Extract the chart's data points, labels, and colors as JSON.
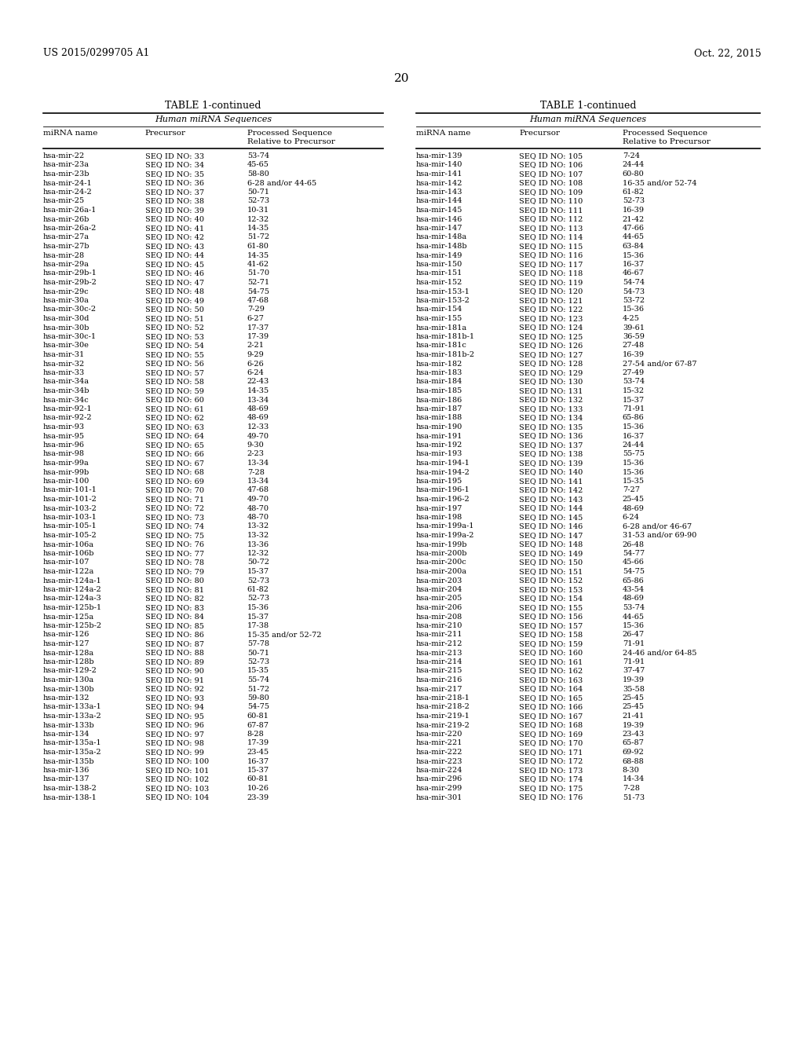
{
  "header_left": "US 2015/0299705 A1",
  "header_right": "Oct. 22, 2015",
  "page_number": "20",
  "table_title": "TABLE 1-continued",
  "table_subtitle": "Human miRNA Sequences",
  "left_table": [
    [
      "hsa-mir-22",
      "SEQ ID NO: 33",
      "53-74"
    ],
    [
      "hsa-mir-23a",
      "SEQ ID NO: 34",
      "45-65"
    ],
    [
      "hsa-mir-23b",
      "SEQ ID NO: 35",
      "58-80"
    ],
    [
      "hsa-mir-24-1",
      "SEQ ID NO: 36",
      "6-28 and/or 44-65"
    ],
    [
      "hsa-mir-24-2",
      "SEQ ID NO: 37",
      "50-71"
    ],
    [
      "hsa-mir-25",
      "SEQ ID NO: 38",
      "52-73"
    ],
    [
      "hsa-mir-26a-1",
      "SEQ ID NO: 39",
      "10-31"
    ],
    [
      "hsa-mir-26b",
      "SEQ ID NO: 40",
      "12-32"
    ],
    [
      "hsa-mir-26a-2",
      "SEQ ID NO: 41",
      "14-35"
    ],
    [
      "hsa-mir-27a",
      "SEQ ID NO: 42",
      "51-72"
    ],
    [
      "hsa-mir-27b",
      "SEQ ID NO: 43",
      "61-80"
    ],
    [
      "hsa-mir-28",
      "SEQ ID NO: 44",
      "14-35"
    ],
    [
      "hsa-mir-29a",
      "SEQ ID NO: 45",
      "41-62"
    ],
    [
      "hsa-mir-29b-1",
      "SEQ ID NO: 46",
      "51-70"
    ],
    [
      "hsa-mir-29b-2",
      "SEQ ID NO: 47",
      "52-71"
    ],
    [
      "hsa-mir-29c",
      "SEQ ID NO: 48",
      "54-75"
    ],
    [
      "hsa-mir-30a",
      "SEQ ID NO: 49",
      "47-68"
    ],
    [
      "hsa-mir-30c-2",
      "SEQ ID NO: 50",
      "7-29"
    ],
    [
      "hsa-mir-30d",
      "SEQ ID NO: 51",
      "6-27"
    ],
    [
      "hsa-mir-30b",
      "SEQ ID NO: 52",
      "17-37"
    ],
    [
      "hsa-mir-30c-1",
      "SEQ ID NO: 53",
      "17-39"
    ],
    [
      "hsa-mir-30e",
      "SEQ ID NO: 54",
      "2-21"
    ],
    [
      "hsa-mir-31",
      "SEQ ID NO: 55",
      "9-29"
    ],
    [
      "hsa-mir-32",
      "SEQ ID NO: 56",
      "6-26"
    ],
    [
      "hsa-mir-33",
      "SEQ ID NO: 57",
      "6-24"
    ],
    [
      "hsa-mir-34a",
      "SEQ ID NO: 58",
      "22-43"
    ],
    [
      "hsa-mir-34b",
      "SEQ ID NO: 59",
      "14-35"
    ],
    [
      "hsa-mir-34c",
      "SEQ ID NO: 60",
      "13-34"
    ],
    [
      "hsa-mir-92-1",
      "SEQ ID NO: 61",
      "48-69"
    ],
    [
      "hsa-mir-92-2",
      "SEQ ID NO: 62",
      "48-69"
    ],
    [
      "hsa-mir-93",
      "SEQ ID NO: 63",
      "12-33"
    ],
    [
      "hsa-mir-95",
      "SEQ ID NO: 64",
      "49-70"
    ],
    [
      "hsa-mir-96",
      "SEQ ID NO: 65",
      "9-30"
    ],
    [
      "hsa-mir-98",
      "SEQ ID NO: 66",
      "2-23"
    ],
    [
      "hsa-mir-99a",
      "SEQ ID NO: 67",
      "13-34"
    ],
    [
      "hsa-mir-99b",
      "SEQ ID NO: 68",
      "7-28"
    ],
    [
      "hsa-mir-100",
      "SEQ ID NO: 69",
      "13-34"
    ],
    [
      "hsa-mir-101-1",
      "SEQ ID NO: 70",
      "47-68"
    ],
    [
      "hsa-mir-101-2",
      "SEQ ID NO: 71",
      "49-70"
    ],
    [
      "hsa-mir-103-2",
      "SEQ ID NO: 72",
      "48-70"
    ],
    [
      "hsa-mir-103-1",
      "SEQ ID NO: 73",
      "48-70"
    ],
    [
      "hsa-mir-105-1",
      "SEQ ID NO: 74",
      "13-32"
    ],
    [
      "hsa-mir-105-2",
      "SEQ ID NO: 75",
      "13-32"
    ],
    [
      "hsa-mir-106a",
      "SEQ ID NO: 76",
      "13-36"
    ],
    [
      "hsa-mir-106b",
      "SEQ ID NO: 77",
      "12-32"
    ],
    [
      "hsa-mir-107",
      "SEQ ID NO: 78",
      "50-72"
    ],
    [
      "hsa-mir-122a",
      "SEQ ID NO: 79",
      "15-37"
    ],
    [
      "hsa-mir-124a-1",
      "SEQ ID NO: 80",
      "52-73"
    ],
    [
      "hsa-mir-124a-2",
      "SEQ ID NO: 81",
      "61-82"
    ],
    [
      "hsa-mir-124a-3",
      "SEQ ID NO: 82",
      "52-73"
    ],
    [
      "hsa-mir-125b-1",
      "SEQ ID NO: 83",
      "15-36"
    ],
    [
      "hsa-mir-125a",
      "SEQ ID NO: 84",
      "15-37"
    ],
    [
      "hsa-mir-125b-2",
      "SEQ ID NO: 85",
      "17-38"
    ],
    [
      "hsa-mir-126",
      "SEQ ID NO: 86",
      "15-35 and/or 52-72"
    ],
    [
      "hsa-mir-127",
      "SEQ ID NO: 87",
      "57-78"
    ],
    [
      "hsa-mir-128a",
      "SEQ ID NO: 88",
      "50-71"
    ],
    [
      "hsa-mir-128b",
      "SEQ ID NO: 89",
      "52-73"
    ],
    [
      "hsa-mir-129-2",
      "SEQ ID NO: 90",
      "15-35"
    ],
    [
      "hsa-mir-130a",
      "SEQ ID NO: 91",
      "55-74"
    ],
    [
      "hsa-mir-130b",
      "SEQ ID NO: 92",
      "51-72"
    ],
    [
      "hsa-mir-132",
      "SEQ ID NO: 93",
      "59-80"
    ],
    [
      "hsa-mir-133a-1",
      "SEQ ID NO: 94",
      "54-75"
    ],
    [
      "hsa-mir-133a-2",
      "SEQ ID NO: 95",
      "60-81"
    ],
    [
      "hsa-mir-133b",
      "SEQ ID NO: 96",
      "67-87"
    ],
    [
      "hsa-mir-134",
      "SEQ ID NO: 97",
      "8-28"
    ],
    [
      "hsa-mir-135a-1",
      "SEQ ID NO: 98",
      "17-39"
    ],
    [
      "hsa-mir-135a-2",
      "SEQ ID NO: 99",
      "23-45"
    ],
    [
      "hsa-mir-135b",
      "SEQ ID NO: 100",
      "16-37"
    ],
    [
      "hsa-mir-136",
      "SEQ ID NO: 101",
      "15-37"
    ],
    [
      "hsa-mir-137",
      "SEQ ID NO: 102",
      "60-81"
    ],
    [
      "hsa-mir-138-2",
      "SEQ ID NO: 103",
      "10-26"
    ],
    [
      "hsa-mir-138-1",
      "SEQ ID NO: 104",
      "23-39"
    ]
  ],
  "right_table": [
    [
      "hsa-mir-139",
      "SEQ ID NO: 105",
      "7-24"
    ],
    [
      "hsa-mir-140",
      "SEQ ID NO: 106",
      "24-44"
    ],
    [
      "hsa-mir-141",
      "SEQ ID NO: 107",
      "60-80"
    ],
    [
      "hsa-mir-142",
      "SEQ ID NO: 108",
      "16-35 and/or 52-74"
    ],
    [
      "hsa-mir-143",
      "SEQ ID NO: 109",
      "61-82"
    ],
    [
      "hsa-mir-144",
      "SEQ ID NO: 110",
      "52-73"
    ],
    [
      "hsa-mir-145",
      "SEQ ID NO: 111",
      "16-39"
    ],
    [
      "hsa-mir-146",
      "SEQ ID NO: 112",
      "21-42"
    ],
    [
      "hsa-mir-147",
      "SEQ ID NO: 113",
      "47-66"
    ],
    [
      "hsa-mir-148a",
      "SEQ ID NO: 114",
      "44-65"
    ],
    [
      "hsa-mir-148b",
      "SEQ ID NO: 115",
      "63-84"
    ],
    [
      "hsa-mir-149",
      "SEQ ID NO: 116",
      "15-36"
    ],
    [
      "hsa-mir-150",
      "SEQ ID NO: 117",
      "16-37"
    ],
    [
      "hsa-mir-151",
      "SEQ ID NO: 118",
      "46-67"
    ],
    [
      "hsa-mir-152",
      "SEQ ID NO: 119",
      "54-74"
    ],
    [
      "hsa-mir-153-1",
      "SEQ ID NO: 120",
      "54-73"
    ],
    [
      "hsa-mir-153-2",
      "SEQ ID NO: 121",
      "53-72"
    ],
    [
      "hsa-mir-154",
      "SEQ ID NO: 122",
      "15-36"
    ],
    [
      "hsa-mir-155",
      "SEQ ID NO: 123",
      "4-25"
    ],
    [
      "hsa-mir-181a",
      "SEQ ID NO: 124",
      "39-61"
    ],
    [
      "hsa-mir-181b-1",
      "SEQ ID NO: 125",
      "36-59"
    ],
    [
      "hsa-mir-181c",
      "SEQ ID NO: 126",
      "27-48"
    ],
    [
      "hsa-mir-181b-2",
      "SEQ ID NO: 127",
      "16-39"
    ],
    [
      "hsa-mir-182",
      "SEQ ID NO: 128",
      "27-54 and/or 67-87"
    ],
    [
      "hsa-mir-183",
      "SEQ ID NO: 129",
      "27-49"
    ],
    [
      "hsa-mir-184",
      "SEQ ID NO: 130",
      "53-74"
    ],
    [
      "hsa-mir-185",
      "SEQ ID NO: 131",
      "15-32"
    ],
    [
      "hsa-mir-186",
      "SEQ ID NO: 132",
      "15-37"
    ],
    [
      "hsa-mir-187",
      "SEQ ID NO: 133",
      "71-91"
    ],
    [
      "hsa-mir-188",
      "SEQ ID NO: 134",
      "65-86"
    ],
    [
      "hsa-mir-190",
      "SEQ ID NO: 135",
      "15-36"
    ],
    [
      "hsa-mir-191",
      "SEQ ID NO: 136",
      "16-37"
    ],
    [
      "hsa-mir-192",
      "SEQ ID NO: 137",
      "24-44"
    ],
    [
      "hsa-mir-193",
      "SEQ ID NO: 138",
      "55-75"
    ],
    [
      "hsa-mir-194-1",
      "SEQ ID NO: 139",
      "15-36"
    ],
    [
      "hsa-mir-194-2",
      "SEQ ID NO: 140",
      "15-36"
    ],
    [
      "hsa-mir-195",
      "SEQ ID NO: 141",
      "15-35"
    ],
    [
      "hsa-mir-196-1",
      "SEQ ID NO: 142",
      "7-27"
    ],
    [
      "hsa-mir-196-2",
      "SEQ ID NO: 143",
      "25-45"
    ],
    [
      "hsa-mir-197",
      "SEQ ID NO: 144",
      "48-69"
    ],
    [
      "hsa-mir-198",
      "SEQ ID NO: 145",
      "6-24"
    ],
    [
      "hsa-mir-199a-1",
      "SEQ ID NO: 146",
      "6-28 and/or 46-67"
    ],
    [
      "hsa-mir-199a-2",
      "SEQ ID NO: 147",
      "31-53 and/or 69-90"
    ],
    [
      "hsa-mir-199b",
      "SEQ ID NO: 148",
      "26-48"
    ],
    [
      "hsa-mir-200b",
      "SEQ ID NO: 149",
      "54-77"
    ],
    [
      "hsa-mir-200c",
      "SEQ ID NO: 150",
      "45-66"
    ],
    [
      "hsa-mir-200a",
      "SEQ ID NO: 151",
      "54-75"
    ],
    [
      "hsa-mir-203",
      "SEQ ID NO: 152",
      "65-86"
    ],
    [
      "hsa-mir-204",
      "SEQ ID NO: 153",
      "43-54"
    ],
    [
      "hsa-mir-205",
      "SEQ ID NO: 154",
      "48-69"
    ],
    [
      "hsa-mir-206",
      "SEQ ID NO: 155",
      "53-74"
    ],
    [
      "hsa-mir-208",
      "SEQ ID NO: 156",
      "44-65"
    ],
    [
      "hsa-mir-210",
      "SEQ ID NO: 157",
      "15-36"
    ],
    [
      "hsa-mir-211",
      "SEQ ID NO: 158",
      "26-47"
    ],
    [
      "hsa-mir-212",
      "SEQ ID NO: 159",
      "71-91"
    ],
    [
      "hsa-mir-213",
      "SEQ ID NO: 160",
      "24-46 and/or 64-85"
    ],
    [
      "hsa-mir-214",
      "SEQ ID NO: 161",
      "71-91"
    ],
    [
      "hsa-mir-215",
      "SEQ ID NO: 162",
      "37-47"
    ],
    [
      "hsa-mir-216",
      "SEQ ID NO: 163",
      "19-39"
    ],
    [
      "hsa-mir-217",
      "SEQ ID NO: 164",
      "35-58"
    ],
    [
      "hsa-mir-218-1",
      "SEQ ID NO: 165",
      "25-45"
    ],
    [
      "hsa-mir-218-2",
      "SEQ ID NO: 166",
      "25-45"
    ],
    [
      "hsa-mir-219-1",
      "SEQ ID NO: 167",
      "21-41"
    ],
    [
      "hsa-mir-219-2",
      "SEQ ID NO: 168",
      "19-39"
    ],
    [
      "hsa-mir-220",
      "SEQ ID NO: 169",
      "23-43"
    ],
    [
      "hsa-mir-221",
      "SEQ ID NO: 170",
      "65-87"
    ],
    [
      "hsa-mir-222",
      "SEQ ID NO: 171",
      "69-92"
    ],
    [
      "hsa-mir-223",
      "SEQ ID NO: 172",
      "68-88"
    ],
    [
      "hsa-mir-224",
      "SEQ ID NO: 173",
      "8-30"
    ],
    [
      "hsa-mir-296",
      "SEQ ID NO: 174",
      "14-34"
    ],
    [
      "hsa-mir-299",
      "SEQ ID NO: 175",
      "7-28"
    ],
    [
      "hsa-mir-301",
      "SEQ ID NO: 176",
      "51-73"
    ]
  ],
  "bg_color": "#ffffff",
  "text_color": "#000000",
  "font_size_header": 9,
  "font_size_page": 11,
  "font_size_title": 9,
  "font_size_subtitle": 8,
  "font_size_col_header": 7.5,
  "font_size_data": 7
}
